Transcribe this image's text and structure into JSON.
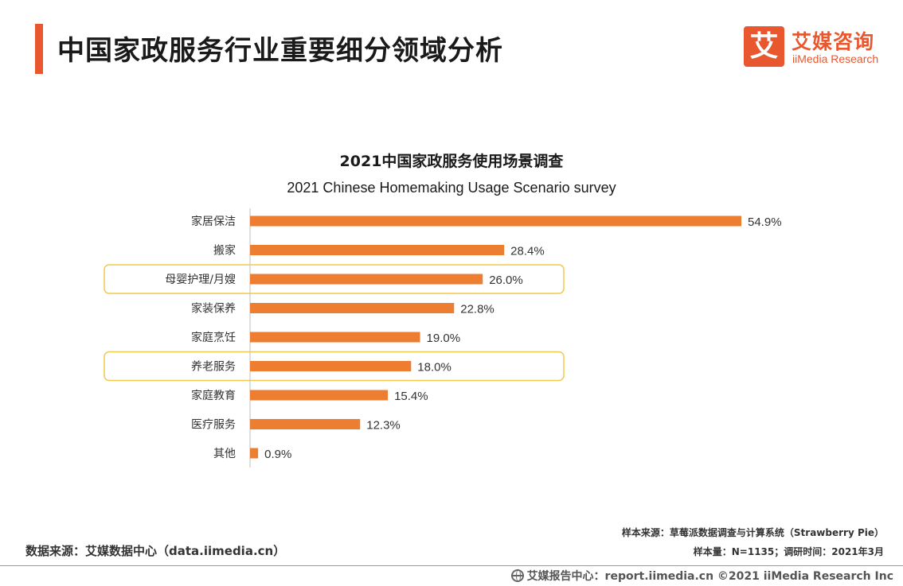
{
  "header": {
    "title": "中国家政服务行业重要细分领域分析"
  },
  "logo": {
    "mark": "艾",
    "name_cn": "艾媒咨询",
    "name_en": "iiMedia Research"
  },
  "chart_data": {
    "type": "bar",
    "orientation": "horizontal",
    "title": "2021中国家政服务使用场景调查",
    "subtitle": "2021 Chinese Homemaking Usage Scenario survey",
    "categories": [
      "家居保洁",
      "搬家",
      "母婴护理/月嫂",
      "家装保养",
      "家庭烹饪",
      "养老服务",
      "家庭教育",
      "医疗服务",
      "其他"
    ],
    "values": [
      54.9,
      28.4,
      26.0,
      22.8,
      19.0,
      18.0,
      15.4,
      12.3,
      0.9
    ],
    "value_labels": [
      "54.9%",
      "28.4%",
      "26.0%",
      "22.8%",
      "19.0%",
      "18.0%",
      "15.4%",
      "12.3%",
      "0.9%"
    ],
    "highlighted_categories": [
      "母婴护理/月嫂",
      "养老服务"
    ],
    "bar_color": "#ed7d31",
    "highlight_color": "#f2c94c",
    "xlim": [
      0,
      60
    ],
    "grid": false,
    "legend": "none"
  },
  "footer": {
    "data_source": "数据来源：艾媒数据中心（data.iimedia.cn）",
    "sample_source": "样本来源：草莓派数据调查与计算系统（Strawberry Pie）",
    "sample_size": "样本量：N=1135；调研时间：2021年3月",
    "copyright": "艾媒报告中心：report.iimedia.cn  ©2021  iiMedia Research  Inc"
  }
}
